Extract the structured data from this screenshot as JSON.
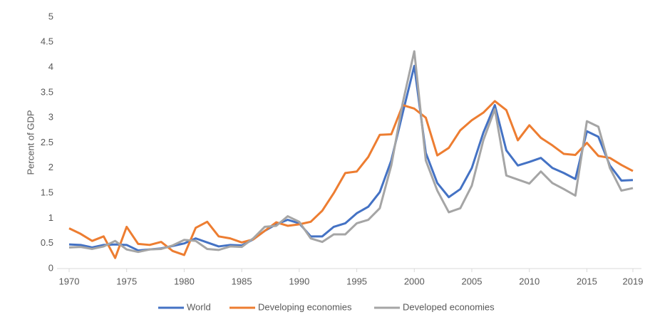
{
  "chart_data": {
    "type": "line",
    "y_label": "Percent of GDP",
    "x": [
      1970,
      1971,
      1972,
      1973,
      1974,
      1975,
      1976,
      1977,
      1978,
      1979,
      1980,
      1981,
      1982,
      1983,
      1984,
      1985,
      1986,
      1987,
      1988,
      1989,
      1990,
      1991,
      1992,
      1993,
      1994,
      1995,
      1996,
      1997,
      1998,
      1999,
      2000,
      2001,
      2002,
      2003,
      2004,
      2005,
      2006,
      2007,
      2008,
      2009,
      2010,
      2011,
      2012,
      2013,
      2014,
      2015,
      2016,
      2017,
      2018,
      2019
    ],
    "series": [
      {
        "name": "World",
        "color": "#4472c4",
        "values": [
          0.48,
          0.47,
          0.42,
          0.47,
          0.48,
          0.47,
          0.36,
          0.38,
          0.4,
          0.45,
          0.5,
          0.6,
          0.52,
          0.44,
          0.47,
          0.46,
          0.58,
          0.75,
          0.88,
          0.97,
          0.9,
          0.64,
          0.64,
          0.83,
          0.9,
          1.1,
          1.23,
          1.52,
          2.15,
          3.1,
          4.03,
          2.3,
          1.7,
          1.42,
          1.58,
          2.0,
          2.7,
          3.25,
          2.35,
          2.05,
          2.12,
          2.2,
          2.0,
          1.9,
          1.78,
          2.73,
          2.62,
          2.05,
          1.75,
          1.76
        ]
      },
      {
        "name": "Developing economies",
        "color": "#ed7d31",
        "values": [
          0.8,
          0.69,
          0.55,
          0.64,
          0.21,
          0.83,
          0.49,
          0.47,
          0.53,
          0.35,
          0.27,
          0.81,
          0.93,
          0.64,
          0.6,
          0.52,
          0.58,
          0.75,
          0.92,
          0.85,
          0.88,
          0.93,
          1.15,
          1.5,
          1.9,
          1.93,
          2.22,
          2.66,
          2.67,
          3.25,
          3.18,
          3.0,
          2.25,
          2.4,
          2.75,
          2.95,
          3.1,
          3.33,
          3.15,
          2.55,
          2.85,
          2.6,
          2.45,
          2.28,
          2.26,
          2.5,
          2.24,
          2.2,
          2.06,
          1.94
        ]
      },
      {
        "name": "Developed economies",
        "color": "#a5a5a5",
        "values": [
          0.42,
          0.43,
          0.39,
          0.44,
          0.55,
          0.38,
          0.33,
          0.38,
          0.39,
          0.46,
          0.57,
          0.55,
          0.39,
          0.37,
          0.44,
          0.43,
          0.6,
          0.83,
          0.85,
          1.04,
          0.93,
          0.6,
          0.53,
          0.68,
          0.68,
          0.9,
          0.97,
          1.2,
          2.05,
          3.3,
          4.32,
          2.15,
          1.55,
          1.12,
          1.2,
          1.65,
          2.55,
          3.17,
          1.85,
          1.77,
          1.69,
          1.93,
          1.7,
          1.58,
          1.45,
          2.93,
          2.82,
          2.0,
          1.55,
          1.6
        ]
      }
    ],
    "xlim": [
      1970,
      2019
    ],
    "xticks": [
      1970,
      1975,
      1980,
      1985,
      1990,
      1995,
      2000,
      2005,
      2010,
      2015,
      2019
    ],
    "ylim": [
      0,
      5
    ],
    "yticks": [
      0,
      0.5,
      1,
      1.5,
      2,
      2.5,
      3,
      3.5,
      4,
      4.5,
      5
    ],
    "grid": false,
    "legend": "bottom"
  }
}
